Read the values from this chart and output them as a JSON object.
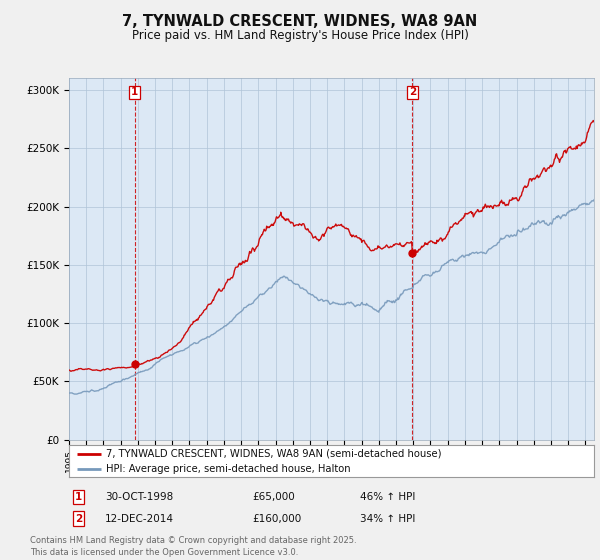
{
  "title": "7, TYNWALD CRESCENT, WIDNES, WA8 9AN",
  "subtitle": "Price paid vs. HM Land Registry's House Price Index (HPI)",
  "ylabel_ticks": [
    "£0",
    "£50K",
    "£100K",
    "£150K",
    "£200K",
    "£250K",
    "£300K"
  ],
  "ytick_values": [
    0,
    50000,
    100000,
    150000,
    200000,
    250000,
    300000
  ],
  "ylim": [
    0,
    310000
  ],
  "xlim_start": 1995.0,
  "xlim_end": 2025.5,
  "purchase1_x": 1998.83,
  "purchase1_y": 65000,
  "purchase1_label": "1",
  "purchase1_date": "30-OCT-1998",
  "purchase1_price": "£65,000",
  "purchase1_hpi": "46% ↑ HPI",
  "purchase2_x": 2014.95,
  "purchase2_y": 160000,
  "purchase2_label": "2",
  "purchase2_date": "12-DEC-2014",
  "purchase2_price": "£160,000",
  "purchase2_hpi": "34% ↑ HPI",
  "red_color": "#cc0000",
  "blue_color": "#7799bb",
  "plot_bg_color": "#dce8f5",
  "legend_line1": "7, TYNWALD CRESCENT, WIDNES, WA8 9AN (semi-detached house)",
  "legend_line2": "HPI: Average price, semi-detached house, Halton",
  "footnote": "Contains HM Land Registry data © Crown copyright and database right 2025.\nThis data is licensed under the Open Government Licence v3.0.",
  "background_color": "#f0f0f0"
}
